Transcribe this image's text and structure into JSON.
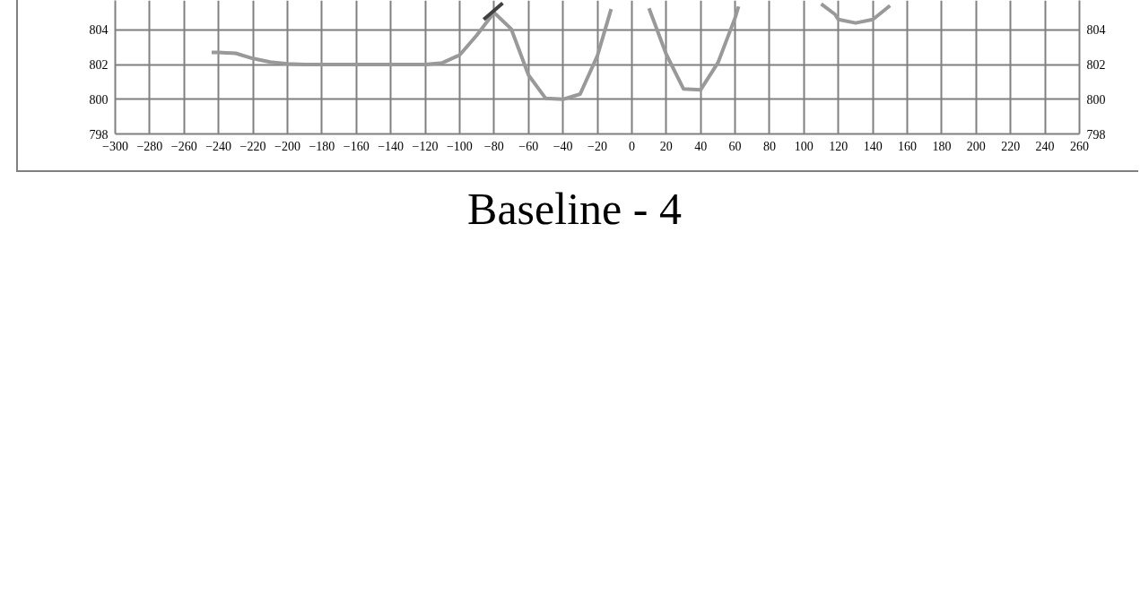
{
  "chart_data": {
    "type": "line",
    "title": "Baseline - 4",
    "xlim": [
      -300,
      260
    ],
    "ylim": [
      798,
      805.7
    ],
    "xticks": [
      -300,
      -280,
      -260,
      -240,
      -220,
      -200,
      -180,
      -160,
      -140,
      -120,
      -100,
      -80,
      -60,
      -40,
      -20,
      0,
      20,
      40,
      60,
      80,
      100,
      120,
      140,
      160,
      180,
      200,
      220,
      240,
      260
    ],
    "yticks": [
      798,
      800,
      802,
      804
    ],
    "y2lim": [
      798,
      805.7
    ],
    "y2ticks": [
      798,
      800,
      802,
      804
    ],
    "grid": true,
    "line_style": "solid",
    "series": [
      {
        "color": "#999999",
        "x": [
          -244,
          -240,
          -230,
          -220,
          -210,
          -200,
          -190,
          -180,
          -170,
          -160,
          -150,
          -140,
          -130,
          -120,
          -110,
          -100,
          -90,
          -80,
          -70,
          -60,
          -50,
          -40,
          -30,
          -20,
          -12,
          0,
          10,
          20,
          30,
          40,
          50,
          60,
          62,
          80,
          110,
          118,
          120,
          130,
          140,
          150
        ],
        "values": [
          802.7,
          802.7,
          802.65,
          802.35,
          802.15,
          802.05,
          802.0,
          802.0,
          802.0,
          802.0,
          802.0,
          802.0,
          802.0,
          802.0,
          802.1,
          802.55,
          803.7,
          805.0,
          804.05,
          801.4,
          800.05,
          800.0,
          800.3,
          802.5,
          805.2,
          null,
          805.25,
          802.6,
          800.6,
          800.55,
          802.1,
          804.7,
          805.35,
          null,
          805.5,
          804.9,
          804.6,
          804.4,
          804.6,
          805.4
        ]
      },
      {
        "color": "#404040",
        "x": [
          -86,
          -75
        ],
        "values": [
          804.6,
          805.55
        ]
      }
    ]
  }
}
